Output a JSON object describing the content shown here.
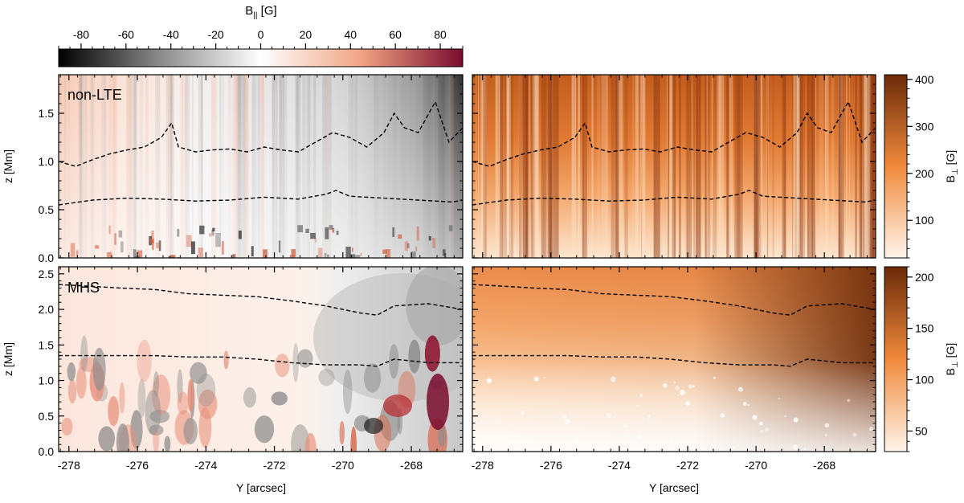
{
  "chart_data": {
    "type": "heatmap",
    "top_colorbar": {
      "label_main": "B",
      "label_sub": "||",
      "label_unit": " [G]",
      "range": [
        -90,
        90
      ],
      "ticks": [
        -80,
        -60,
        -40,
        -20,
        0,
        20,
        40,
        60,
        80
      ],
      "colormap": [
        "#000000",
        "#ffffff",
        "#7a0a2e"
      ]
    },
    "xaxis": {
      "label": "Y [arcsec]",
      "range": [
        -278.3,
        -266.5
      ],
      "ticks": [
        -278,
        -276,
        -274,
        -272,
        -270,
        -268
      ]
    },
    "panels": [
      {
        "id": "nonlte-bpar",
        "annotation": "non-LTE",
        "quantity": "B||",
        "ylabel": "z [Mm]",
        "yrange": [
          0,
          1.9
        ],
        "yticks": [
          "0.0",
          "0.5",
          "1.0",
          "1.5"
        ],
        "contours": [
          {
            "x": [
              -278.3,
              -277.8,
              -277.3,
              -276.8,
              -276.3,
              -275.8,
              -275.3,
              -275.0,
              -274.8,
              -274.3,
              -273.8,
              -273.3,
              -272.8,
              -272.3,
              -271.8,
              -271.3,
              -270.8,
              -270.3,
              -269.8,
              -269.3,
              -268.8,
              -268.5,
              -268.2,
              -267.8,
              -267.3,
              -266.9,
              -266.5
            ],
            "z": [
              1.0,
              0.95,
              1.02,
              1.08,
              1.12,
              1.15,
              1.25,
              1.4,
              1.15,
              1.1,
              1.12,
              1.13,
              1.1,
              1.15,
              1.12,
              1.1,
              1.2,
              1.3,
              1.25,
              1.15,
              1.3,
              1.5,
              1.35,
              1.3,
              1.62,
              1.2,
              1.35
            ]
          },
          {
            "x": [
              -278.3,
              -277.3,
              -276.3,
              -275.3,
              -274.3,
              -273.3,
              -272.3,
              -271.3,
              -270.5,
              -270.2,
              -269.8,
              -268.8,
              -267.8,
              -266.8,
              -266.5
            ],
            "z": [
              0.55,
              0.6,
              0.62,
              0.61,
              0.59,
              0.6,
              0.63,
              0.61,
              0.66,
              0.7,
              0.64,
              0.62,
              0.6,
              0.58,
              0.6
            ]
          }
        ]
      },
      {
        "id": "nonlte-bperp",
        "annotation": "",
        "quantity": "B⊥",
        "colorbar": {
          "label_main": "B",
          "label_sub": "⊥",
          "label_unit": " [G]",
          "range": [
            20,
            410
          ],
          "ticks": [
            100,
            200,
            300,
            400
          ]
        },
        "contours": "same-as-left"
      },
      {
        "id": "mhs-bpar",
        "annotation": "MHS",
        "quantity": "B||",
        "ylabel": "z [Mm]",
        "yrange": [
          0,
          2.6
        ],
        "yticks": [
          "0.0",
          "0.5",
          "1.0",
          "1.5",
          "2.0",
          "2.5"
        ],
        "contours": [
          {
            "x": [
              -278.3,
              -277.5,
              -276.5,
              -275.5,
              -274.5,
              -273.5,
              -272.5,
              -271.5,
              -270.5,
              -269.5,
              -269.0,
              -268.5,
              -267.5,
              -266.5
            ],
            "z": [
              2.35,
              2.33,
              2.3,
              2.28,
              2.22,
              2.2,
              2.18,
              2.12,
              2.05,
              1.95,
              1.92,
              2.05,
              2.08,
              2.0
            ]
          },
          {
            "x": [
              -278.3,
              -277.5,
              -276.5,
              -275.5,
              -274.5,
              -273.5,
              -272.5,
              -271.5,
              -270.5,
              -269.5,
              -269.0,
              -268.5,
              -267.5,
              -266.5
            ],
            "z": [
              1.35,
              1.35,
              1.35,
              1.35,
              1.33,
              1.33,
              1.3,
              1.25,
              1.22,
              1.22,
              1.2,
              1.3,
              1.25,
              1.25
            ]
          }
        ]
      },
      {
        "id": "mhs-bperp",
        "annotation": "",
        "quantity": "B⊥",
        "colorbar": {
          "label_main": "B",
          "label_sub": "⊥",
          "label_unit": " [G]",
          "range": [
            30,
            210
          ],
          "ticks": [
            50,
            100,
            150,
            200
          ]
        },
        "contours": "same-as-left"
      }
    ]
  }
}
